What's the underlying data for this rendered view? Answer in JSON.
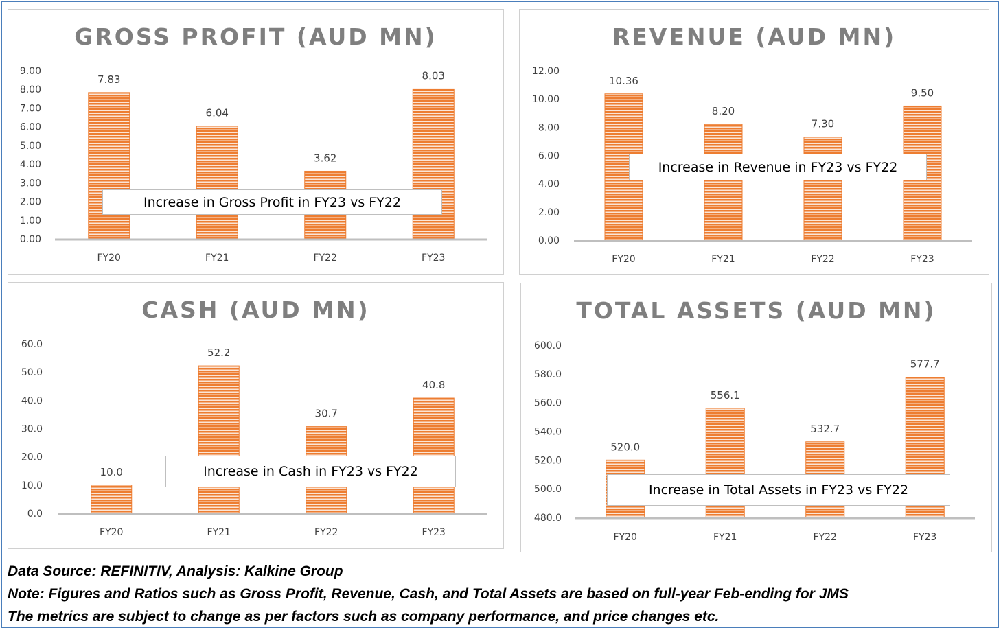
{
  "chart_data": [
    {
      "type": "bar",
      "title": "GROSS PROFIT (AUD MN)",
      "categories": [
        "FY20",
        "FY21",
        "FY22",
        "FY23"
      ],
      "values": [
        7.83,
        6.04,
        3.62,
        8.03
      ],
      "value_labels": [
        "7.83",
        "6.04",
        "3.62",
        "8.03"
      ],
      "ylim": [
        0,
        9
      ],
      "yticks": [
        "0.00",
        "1.00",
        "2.00",
        "3.00",
        "4.00",
        "5.00",
        "6.00",
        "7.00",
        "8.00",
        "9.00"
      ],
      "grid": false,
      "bar_color": "#ed7d31",
      "annotation": "Increase in Gross Profit in FY23 vs FY22"
    },
    {
      "type": "bar",
      "title": "REVENUE (AUD MN)",
      "categories": [
        "FY20",
        "FY21",
        "FY22",
        "FY23"
      ],
      "values": [
        10.36,
        8.2,
        7.3,
        9.5
      ],
      "value_labels": [
        "10.36",
        "8.20",
        "7.30",
        "9.50"
      ],
      "ylim": [
        0,
        12
      ],
      "yticks": [
        "0.00",
        "2.00",
        "4.00",
        "6.00",
        "8.00",
        "10.00",
        "12.00"
      ],
      "grid": false,
      "bar_color": "#ed7d31",
      "annotation": "Increase in Revenue in FY23 vs FY22"
    },
    {
      "type": "bar",
      "title": "CASH (AUD MN)",
      "categories": [
        "FY20",
        "FY21",
        "FY22",
        "FY23"
      ],
      "values": [
        10.0,
        52.2,
        30.7,
        40.8
      ],
      "value_labels": [
        "10.0",
        "52.2",
        "30.7",
        "40.8"
      ],
      "ylim": [
        0,
        60
      ],
      "yticks": [
        "0.0",
        "10.0",
        "20.0",
        "30.0",
        "40.0",
        "50.0",
        "60.0"
      ],
      "grid": false,
      "bar_color": "#ed7d31",
      "annotation": "Increase in Cash in FY23 vs FY22"
    },
    {
      "type": "bar",
      "title": "TOTAL ASSETS (AUD MN)",
      "categories": [
        "FY20",
        "FY21",
        "FY22",
        "FY23"
      ],
      "values": [
        520.0,
        556.1,
        532.7,
        577.7
      ],
      "value_labels": [
        "520.0",
        "556.1",
        "532.7",
        "577.7"
      ],
      "ylim": [
        480,
        600
      ],
      "yticks": [
        "480.0",
        "500.0",
        "520.0",
        "540.0",
        "560.0",
        "580.0",
        "600.0"
      ],
      "grid": false,
      "bar_color": "#ed7d31",
      "annotation": "Increase in Total Assets in FY23 vs FY22"
    }
  ],
  "footer": {
    "source": "Data Source: REFINITIV, Analysis: Kalkine Group",
    "note": "Note: Figures and Ratios such as Gross Profit, Revenue, Cash, and Total Assets are based on full-year Feb-ending for JMS",
    "disclaimer": "The metrics are subject to change as per factors such as company performance, and price changes etc."
  },
  "colors": {
    "bar": "#ed7d31",
    "bar_stripe": "#ffffff",
    "title": "#7f7f7f",
    "axis": "#bfbfbf",
    "frame": "#4a7ebb"
  }
}
